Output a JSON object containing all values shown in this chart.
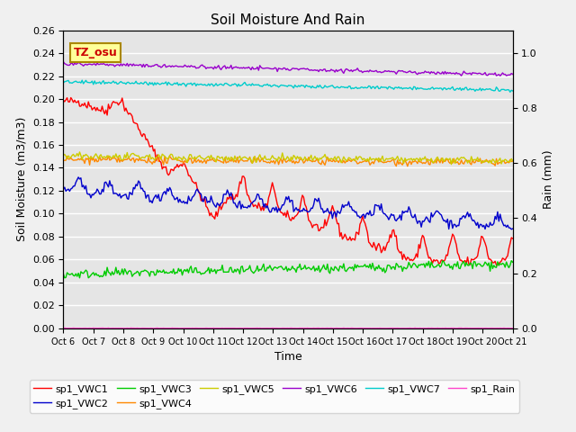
{
  "title": "Soil Moisture And Rain",
  "xlabel": "Time",
  "ylabel_left": "Soil Moisture (m3/m3)",
  "ylabel_right": "Rain (mm)",
  "annotation": "TZ_osu",
  "ylim_left": [
    0.0,
    0.26
  ],
  "ylim_right": [
    0.0,
    1.083
  ],
  "background_color": "#e5e5e5",
  "grid_color": "#ffffff",
  "fig_facecolor": "#f0f0f0",
  "legend_entries": [
    {
      "label": "sp1_VWC1",
      "color": "#ff0000"
    },
    {
      "label": "sp1_VWC2",
      "color": "#0000cc"
    },
    {
      "label": "sp1_VWC3",
      "color": "#00cc00"
    },
    {
      "label": "sp1_VWC4",
      "color": "#ff8800"
    },
    {
      "label": "sp1_VWC5",
      "color": "#cccc00"
    },
    {
      "label": "sp1_VWC6",
      "color": "#9900cc"
    },
    {
      "label": "sp1_VWC7",
      "color": "#00cccc"
    },
    {
      "label": "sp1_Rain",
      "color": "#ff44cc"
    }
  ],
  "n_points": 360,
  "xtick_labels": [
    "Oct 6",
    "Oct 7",
    "Oct 8",
    "Oct 9",
    "Oct 10",
    "Oct 11",
    "Oct 12",
    "Oct 13",
    "Oct 14",
    "Oct 15",
    "Oct 16",
    "Oct 17",
    "Oct 18",
    "Oct 19",
    "Oct 20",
    "Oct 21"
  ],
  "xtick_positions": [
    0,
    1,
    2,
    3,
    4,
    5,
    6,
    7,
    8,
    9,
    10,
    11,
    12,
    13,
    14,
    15
  ]
}
